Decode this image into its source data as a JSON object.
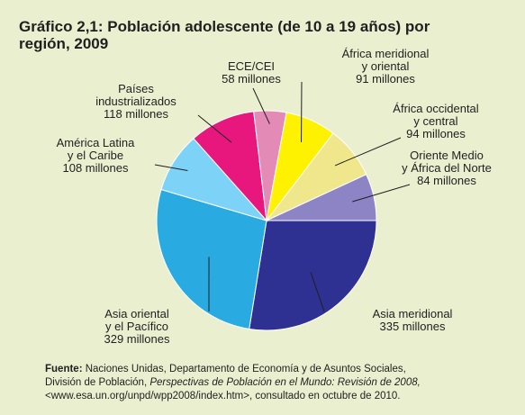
{
  "chart_data": {
    "type": "pie",
    "title": "Gráfico 2,1: Población adolescente (de 10 a 19 años) por región, 2009",
    "slices": [
      {
        "label_lines": [
          "Asia meridional"
        ],
        "value_label": "335 millones",
        "value": 335,
        "color": "#2e3192"
      },
      {
        "label_lines": [
          "Asia oriental",
          "y el Pacífico"
        ],
        "value_label": "329 millones",
        "value": 329,
        "color": "#29abe2"
      },
      {
        "label_lines": [
          "América Latina",
          "y el Caribe"
        ],
        "value_label": "108 millones",
        "value": 108,
        "color": "#7dd3f7"
      },
      {
        "label_lines": [
          "Países",
          "industrializados"
        ],
        "value_label": "118 millones",
        "value": 118,
        "color": "#e8177d"
      },
      {
        "label_lines": [
          "ECE/CEI"
        ],
        "value_label": "58 millones",
        "value": 58,
        "color": "#e48ab6"
      },
      {
        "label_lines": [
          "África meridional",
          "y oriental"
        ],
        "value_label": "91 millones",
        "value": 91,
        "color": "#fff200"
      },
      {
        "label_lines": [
          "África occidental",
          "y central"
        ],
        "value_label": "94 millones",
        "value": 94,
        "color": "#f0e68c"
      },
      {
        "label_lines": [
          "Oriente Medio",
          "y África del Norte"
        ],
        "value_label": "84 millones",
        "value": 84,
        "color": "#8c84c4"
      }
    ]
  },
  "source": {
    "label": "Fuente:",
    "text1": " Naciones Unidas, Departamento de Economía y de Asuntos Sociales,",
    "text2": "División de Población, ",
    "italic": "Perspectivas de Población en el Mundo: Revisión de 2008,",
    "text3": "<www.esa.un.org/unpd/wpp2008/index.htm>, consultado en octubre de 2010."
  }
}
